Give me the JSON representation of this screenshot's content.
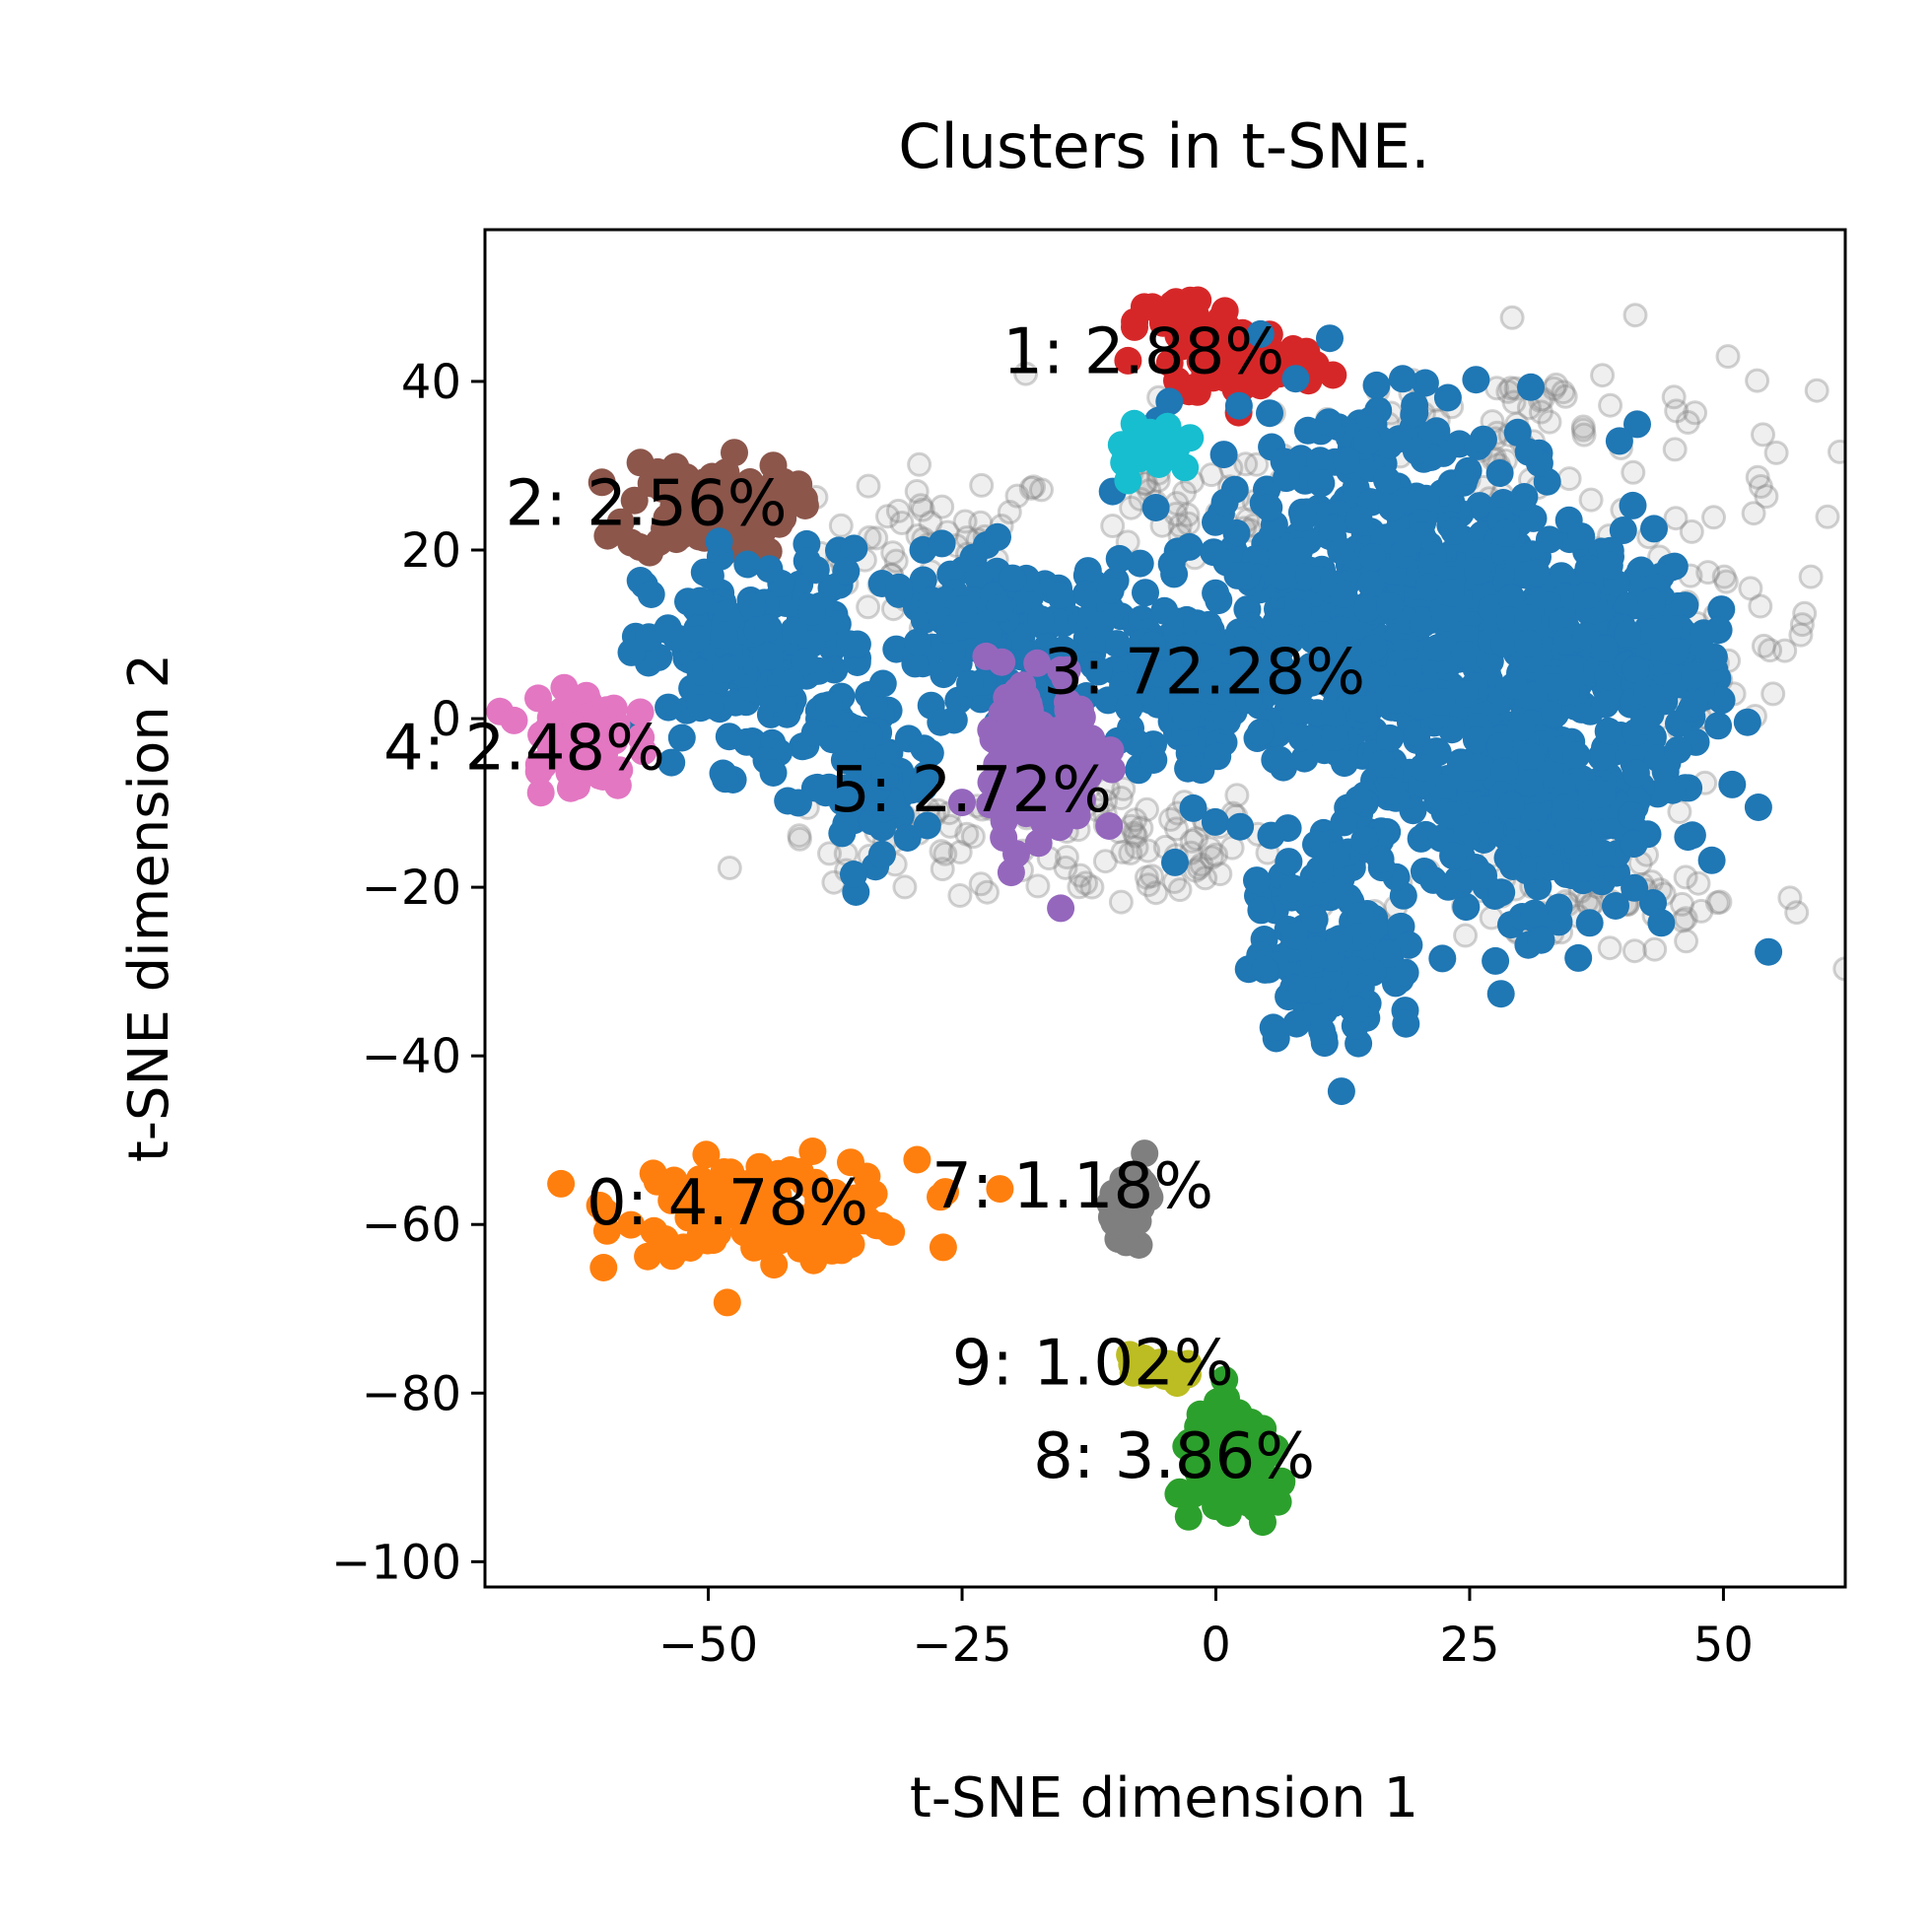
{
  "chart_data": {
    "type": "scatter",
    "title": "Clusters in t-SNE.",
    "xlabel": "t-SNE dimension 1",
    "ylabel": "t-SNE dimension 2",
    "xlim": [
      -72,
      62
    ],
    "ylim": [
      -103,
      58
    ],
    "xticks": [
      {
        "value": -50,
        "label": "−50"
      },
      {
        "value": -25,
        "label": "−25"
      },
      {
        "value": 0,
        "label": "0"
      },
      {
        "value": 25,
        "label": "25"
      },
      {
        "value": 50,
        "label": "50"
      }
    ],
    "yticks": [
      {
        "value": 40,
        "label": "40"
      },
      {
        "value": 20,
        "label": "20"
      },
      {
        "value": 0,
        "label": "0"
      },
      {
        "value": -20,
        "label": "−20"
      },
      {
        "value": -40,
        "label": "−40"
      },
      {
        "value": -60,
        "label": "−60"
      },
      {
        "value": -80,
        "label": "−80"
      },
      {
        "value": -100,
        "label": "−100"
      }
    ],
    "grid": false,
    "noise_color": "#7f7f7f",
    "clusters": [
      {
        "id": 0,
        "label": "0: 4.78%",
        "color": "#ff7f0e",
        "label_x": -62,
        "label_y": -60,
        "blobs": [
          [
            -44,
            -58,
            9,
            3.5,
            140
          ]
        ]
      },
      {
        "id": 1,
        "label": "1: 2.88%",
        "color": "#d62728",
        "label_x": -21,
        "label_y": 41,
        "blobs": [
          [
            -3,
            47,
            3,
            2,
            40
          ],
          [
            3,
            42,
            5,
            2.5,
            70
          ]
        ]
      },
      {
        "id": 2,
        "label": "2: 2.56%",
        "color": "#8c564b",
        "label_x": -70,
        "label_y": 23,
        "blobs": [
          [
            -50,
            25,
            5,
            3.5,
            110
          ]
        ]
      },
      {
        "id": 3,
        "label": "3: 72.28%",
        "color": "#1f77b4",
        "label_x": -17,
        "label_y": 3,
        "blobs": [
          [
            -45,
            7,
            7,
            8,
            180
          ],
          [
            -34,
            -8,
            4,
            5,
            70
          ],
          [
            -20,
            10,
            8,
            6,
            160
          ],
          [
            0,
            3,
            8,
            8,
            170
          ],
          [
            15,
            20,
            10,
            12,
            320
          ],
          [
            25,
            0,
            13,
            16,
            420
          ],
          [
            33,
            -12,
            6,
            6,
            120
          ],
          [
            38,
            10,
            6,
            8,
            140
          ],
          [
            12,
            -27,
            5,
            7,
            130
          ],
          [
            44,
            6,
            3,
            4,
            50
          ]
        ]
      },
      {
        "id": 4,
        "label": "4: 2.48%",
        "color": "#e377c2",
        "label_x": -82,
        "label_y": -6,
        "blobs": [
          [
            -63,
            -2,
            3.2,
            4,
            80
          ]
        ]
      },
      {
        "id": 5,
        "label": "5: 2.72%",
        "color": "#9467bd",
        "label_x": -38,
        "label_y": -11,
        "blobs": [
          [
            -17,
            -5,
            3.5,
            7,
            110
          ]
        ]
      },
      {
        "id": 6,
        "label": "",
        "color": "#17becf",
        "label_x": 0,
        "label_y": 0,
        "blobs": [
          [
            -6,
            32,
            2.5,
            2,
            25
          ]
        ]
      },
      {
        "id": 7,
        "label": "7: 1.18%",
        "color": "#7f7f7f",
        "label_x": -28,
        "label_y": -58,
        "blobs": [
          [
            -8,
            -57,
            1.5,
            2.5,
            30
          ]
        ]
      },
      {
        "id": 8,
        "label": "8: 3.86%",
        "color": "#2ca02c",
        "label_x": -18,
        "label_y": -90,
        "blobs": [
          [
            2,
            -89,
            3.5,
            4,
            110
          ]
        ]
      },
      {
        "id": 9,
        "label": "9: 1.02%",
        "color": "#bcbd22",
        "label_x": -26,
        "label_y": -79,
        "blobs": [
          [
            -6,
            -77,
            1.8,
            1.5,
            25
          ]
        ]
      }
    ],
    "noise_regions": [
      [
        -27,
        20,
        6,
        5,
        60
      ],
      [
        -10,
        -15,
        8,
        4,
        80
      ],
      [
        30,
        34,
        14,
        6,
        90
      ],
      [
        48,
        10,
        6,
        8,
        60
      ],
      [
        35,
        -22,
        12,
        3,
        70
      ],
      [
        -3,
        25,
        6,
        4,
        40
      ],
      [
        -32,
        -15,
        6,
        3,
        40
      ]
    ]
  }
}
